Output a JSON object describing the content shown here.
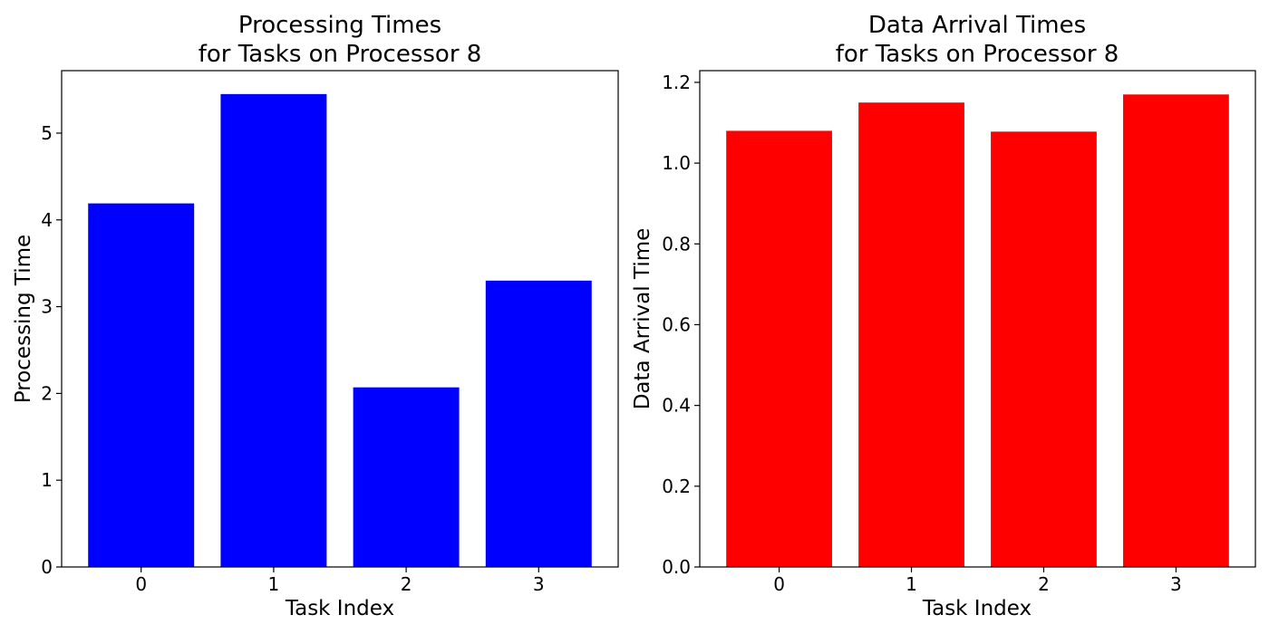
{
  "chart_data": [
    {
      "type": "bar",
      "title_lines": [
        "Processing Times",
        "for Tasks on Processor 8"
      ],
      "xlabel": "Task Index",
      "ylabel": "Processing Time",
      "categories": [
        "0",
        "1",
        "2",
        "3"
      ],
      "values": [
        4.19,
        5.45,
        2.07,
        3.3
      ],
      "ylim": [
        0,
        5.72
      ],
      "yticks": [
        0,
        1,
        2,
        3,
        4,
        5
      ],
      "ytick_labels": [
        "0",
        "1",
        "2",
        "3",
        "4",
        "5"
      ],
      "color": "#0000ff",
      "grid": false
    },
    {
      "type": "bar",
      "title_lines": [
        "Data Arrival Times",
        "for Tasks on Processor 8"
      ],
      "xlabel": "Task Index",
      "ylabel": "Data Arrival Time",
      "categories": [
        "0",
        "1",
        "2",
        "3"
      ],
      "values": [
        1.08,
        1.15,
        1.078,
        1.17
      ],
      "ylim": [
        0,
        1.229
      ],
      "yticks": [
        0.0,
        0.2,
        0.4,
        0.6,
        0.8,
        1.0,
        1.2
      ],
      "ytick_labels": [
        "0.0",
        "0.2",
        "0.4",
        "0.6",
        "0.8",
        "1.0",
        "1.2"
      ],
      "color": "#ff0000",
      "grid": false
    }
  ]
}
